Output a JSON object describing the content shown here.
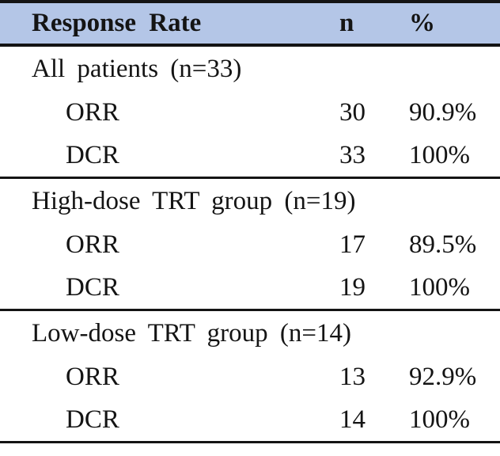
{
  "table": {
    "header": {
      "col_label": "Response Rate",
      "col_n": "n",
      "col_pct": "%",
      "bg_color": "#b4c6e7",
      "border_color": "#141414"
    },
    "sections": [
      {
        "label": "All patients (n=33)",
        "rows": [
          {
            "label": "ORR",
            "n": "30",
            "pct": "90.9%"
          },
          {
            "label": "DCR",
            "n": "33",
            "pct": "100%"
          }
        ]
      },
      {
        "label": "High-dose TRT group (n=19)",
        "rows": [
          {
            "label": "ORR",
            "n": "17",
            "pct": "89.5%"
          },
          {
            "label": "DCR",
            "n": "19",
            "pct": "100%"
          }
        ]
      },
      {
        "label": "Low-dose TRT group (n=14)",
        "rows": [
          {
            "label": "ORR",
            "n": "13",
            "pct": "92.9%"
          },
          {
            "label": "DCR",
            "n": "14",
            "pct": "100%"
          }
        ]
      }
    ]
  }
}
